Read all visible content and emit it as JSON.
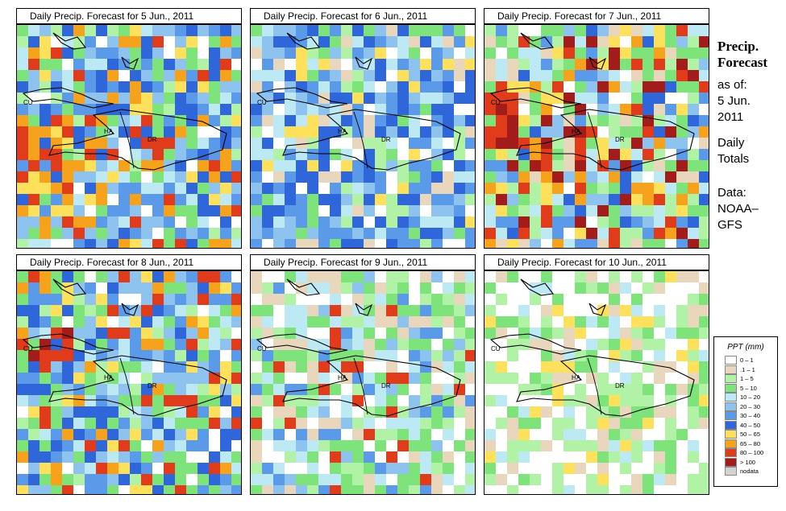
{
  "panels": [
    {
      "title": "Daily Precip. Forecast for  5 Jun., 2011",
      "seed": 11,
      "profile": "heavy_sw"
    },
    {
      "title": "Daily Precip. Forecast for  6 Jun., 2011",
      "seed": 23,
      "profile": "blue"
    },
    {
      "title": "Daily Precip. Forecast for  7 Jun., 2011",
      "seed": 37,
      "profile": "green_hot"
    },
    {
      "title": "Daily Precip. Forecast for  8 Jun., 2011",
      "seed": 41,
      "profile": "blue_mixed"
    },
    {
      "title": "Daily Precip. Forecast for  9 Jun., 2011",
      "seed": 53,
      "profile": "green"
    },
    {
      "title": "Daily Precip. Forecast for  10 Jun., 2011",
      "seed": 67,
      "profile": "dry"
    }
  ],
  "map_labels": {
    "cu": "CU",
    "ha": "HA",
    "dr": "DR"
  },
  "side": {
    "title1": "Precip.",
    "title2": "Forecast",
    "asof": "as of:",
    "date1": "5 Jun.",
    "date2": "2011",
    "daily1": "Daily",
    "daily2": "Totals",
    "data1": "Data:",
    "data2": "NOAA–",
    "data3": "GFS"
  },
  "legend": {
    "title": "PPT (mm)",
    "items": [
      {
        "label": "0 – 1",
        "color": "#ffffff"
      },
      {
        "label": ".1 – 1",
        "color": "#e8d7bd"
      },
      {
        "label": "1 – 5",
        "color": "#b2f2a6"
      },
      {
        "label": "5 – 10",
        "color": "#7de37a"
      },
      {
        "label": "10 – 20",
        "color": "#bde9f5"
      },
      {
        "label": "20 – 30",
        "color": "#8fc3ef"
      },
      {
        "label": "30 – 40",
        "color": "#5a9ae8"
      },
      {
        "label": "40 – 50",
        "color": "#2f66d9"
      },
      {
        "label": "50 – 65",
        "color": "#fde05c"
      },
      {
        "label": "65 – 80",
        "color": "#f7a21c"
      },
      {
        "label": "80 – 100",
        "color": "#e03b1a"
      },
      {
        "label": "> 100",
        "color": "#a31c1c"
      },
      {
        "label": "nodata",
        "color": "#d3d3d3"
      }
    ]
  }
}
